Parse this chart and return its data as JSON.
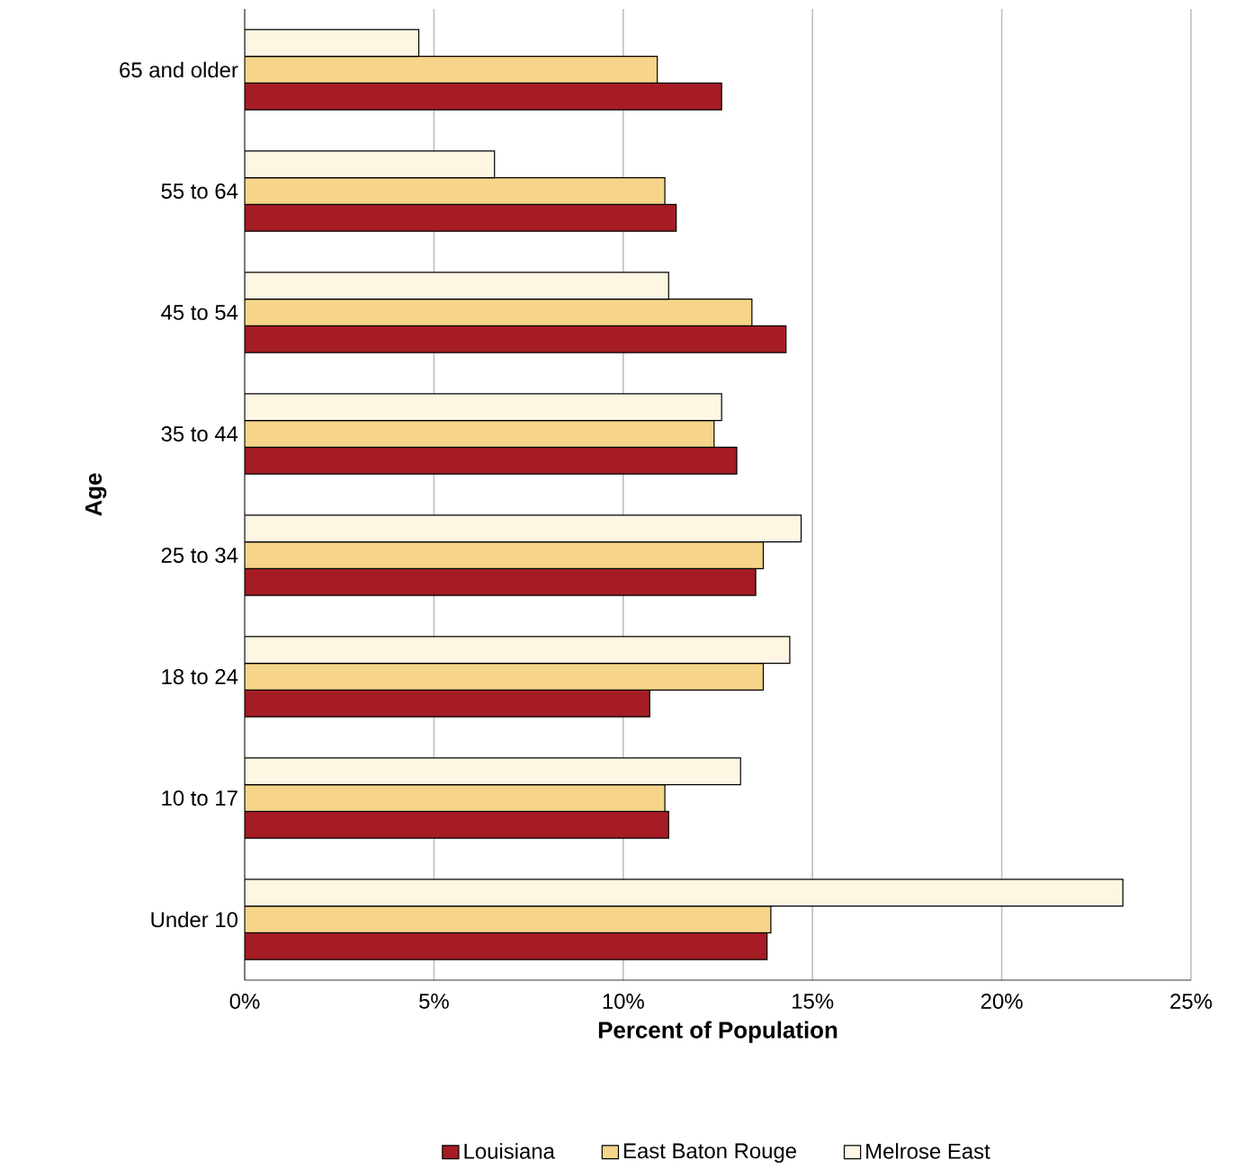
{
  "chart_data": {
    "type": "bar",
    "orientation": "horizontal",
    "xlabel": "Percent of Population",
    "ylabel": "Age",
    "categories": [
      "65 and older",
      "55 to 64",
      "45 to 54",
      "35 to 44",
      "25 to 34",
      "18 to 24",
      "10 to 17",
      "Under 10"
    ],
    "series": [
      {
        "name": "Louisiana",
        "color": "#a51c24",
        "values": [
          12.6,
          11.4,
          14.3,
          13.0,
          13.5,
          10.7,
          11.2,
          13.8
        ]
      },
      {
        "name": "East Baton Rouge",
        "color": "#f6d58a",
        "values": [
          10.9,
          11.1,
          13.4,
          12.4,
          13.7,
          13.7,
          11.1,
          13.9
        ]
      },
      {
        "name": "Melrose East",
        "color": "#fdf6e3",
        "values": [
          4.6,
          6.6,
          11.2,
          12.6,
          14.7,
          14.4,
          13.1,
          23.2
        ]
      }
    ],
    "xlim": [
      0,
      25
    ],
    "xticks": [
      {
        "value": 0,
        "label": "0%"
      },
      {
        "value": 5,
        "label": "5%"
      },
      {
        "value": 10,
        "label": "10%"
      },
      {
        "value": 15,
        "label": "15%"
      },
      {
        "value": 20,
        "label": "20%"
      },
      {
        "value": 25,
        "label": "25%"
      }
    ],
    "grid": "x",
    "legend": "bottom"
  }
}
